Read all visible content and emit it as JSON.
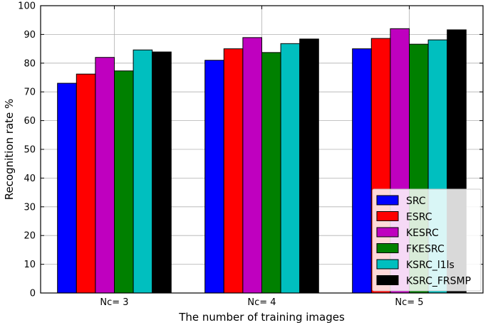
{
  "chart_data": {
    "type": "bar",
    "title": "",
    "xlabel": "The number of training images",
    "ylabel": "Recognition rate %",
    "categories": [
      "Nc= 3",
      "Nc= 4",
      "Nc= 5"
    ],
    "ylim": [
      0,
      100
    ],
    "yticks": [
      0,
      10,
      20,
      30,
      40,
      50,
      60,
      70,
      80,
      90,
      100
    ],
    "grid": true,
    "legend_position": "bottom-right",
    "series": [
      {
        "name": "SRC",
        "color": "#0000ff",
        "values": [
          73.0,
          81.0,
          85.0
        ]
      },
      {
        "name": "ESRC",
        "color": "#ff0000",
        "values": [
          76.2,
          85.0,
          88.6
        ]
      },
      {
        "name": "KESRC",
        "color": "#bf00bf",
        "values": [
          82.0,
          88.9,
          92.0
        ]
      },
      {
        "name": "FKESRC",
        "color": "#008000",
        "values": [
          77.3,
          83.7,
          86.6
        ]
      },
      {
        "name": "KSRC_l1ls",
        "color": "#00bfbf",
        "values": [
          84.6,
          86.8,
          88.1
        ]
      },
      {
        "name": "KSRC_FRSMP",
        "color": "#000000",
        "values": [
          83.9,
          88.4,
          91.6
        ]
      }
    ]
  }
}
